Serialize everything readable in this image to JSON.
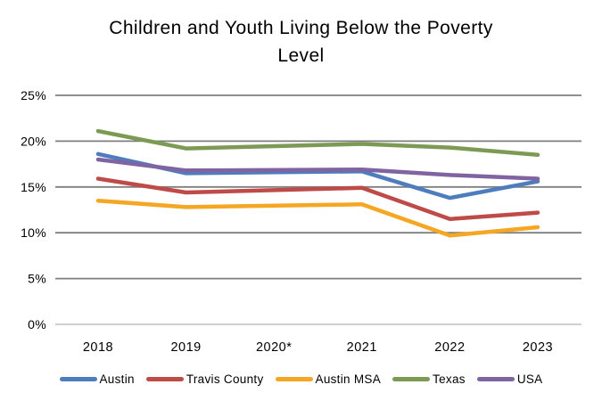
{
  "title_lines": [
    "Children and Youth Living Below the Poverty",
    "Level"
  ],
  "colors": {
    "gridline": "#7F7F7F",
    "zero_line": "#C9C9C9",
    "text": "#000000",
    "background": "#FFFFFF"
  },
  "chart_data": {
    "type": "line",
    "title": "Children and Youth Living Below the Poverty Level",
    "categories": [
      "2018",
      "2019",
      "2020*",
      "2021",
      "2022",
      "2023"
    ],
    "series": [
      {
        "name": "Austin",
        "color": "#4E7DBE",
        "values": [
          18.6,
          16.5,
          null,
          16.7,
          13.8,
          15.6
        ]
      },
      {
        "name": "Travis County",
        "color": "#BE4B48",
        "values": [
          15.9,
          14.4,
          null,
          14.9,
          11.5,
          12.2
        ]
      },
      {
        "name": "Austin MSA",
        "color": "#F5A623",
        "values": [
          13.5,
          12.8,
          null,
          13.1,
          9.7,
          10.6
        ]
      },
      {
        "name": "Texas",
        "color": "#7C9A53",
        "values": [
          21.1,
          19.2,
          null,
          19.7,
          19.3,
          18.5
        ]
      },
      {
        "name": "USA",
        "color": "#8064A2",
        "values": [
          18.0,
          16.8,
          null,
          16.9,
          16.3,
          15.9
        ]
      }
    ],
    "y_ticks": [
      "0%",
      "5%",
      "10%",
      "15%",
      "20%",
      "25%"
    ],
    "y_tick_values": [
      0,
      5,
      10,
      15,
      20,
      25
    ],
    "ylim": [
      0,
      25
    ],
    "xlabel": "",
    "ylabel": "",
    "grid": true,
    "note": "2020 shown with asterisk; series have no 2020 data point (lines connect 2019 to 2021 directly)",
    "legend_position": "bottom"
  }
}
